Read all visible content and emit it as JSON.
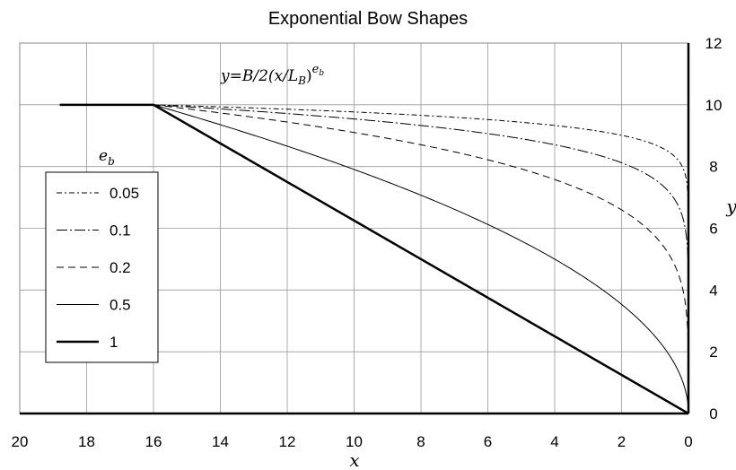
{
  "chart_data": {
    "type": "line",
    "title": "Exponential Bow Shapes",
    "xlabel": "x",
    "ylabel": "y",
    "xlim": [
      20,
      0
    ],
    "ylim": [
      0,
      12
    ],
    "x_reversed": true,
    "grid": true,
    "x_ticks": [
      "20",
      "18",
      "16",
      "14",
      "12",
      "10",
      "8",
      "6",
      "4",
      "2",
      "0"
    ],
    "y_ticks": [
      "0",
      "2",
      "4",
      "6",
      "8",
      "10",
      "12"
    ],
    "y_axis_position": "right",
    "formula": {
      "lhs": "y",
      "rhs_pre": "B/2(x/",
      "rhs_L": "L",
      "rhs_L_sub": "B",
      "rhs_post": ")",
      "exp": "e",
      "exp_sub": "b"
    },
    "parameters": {
      "B": 20,
      "L_B": 16,
      "flat_start_x": 18.8
    },
    "legend": {
      "title": "e",
      "title_sub": "b",
      "placement": "left",
      "entries": [
        "0.05",
        "0.1",
        "0.2",
        "0.5",
        "1"
      ]
    },
    "series": [
      {
        "name": "0.05",
        "exponent": 0.05,
        "dash": "6,3,2,3",
        "stroke_width": 1
      },
      {
        "name": "0.1",
        "exponent": 0.1,
        "dash": "12,3,2,3",
        "stroke_width": 1
      },
      {
        "name": "0.2",
        "exponent": 0.2,
        "dash": "8,5",
        "stroke_width": 1
      },
      {
        "name": "0.5",
        "exponent": 0.5,
        "dash": "",
        "stroke_width": 1
      },
      {
        "name": "1",
        "exponent": 1,
        "dash": "",
        "stroke_width": 2.5
      }
    ]
  }
}
